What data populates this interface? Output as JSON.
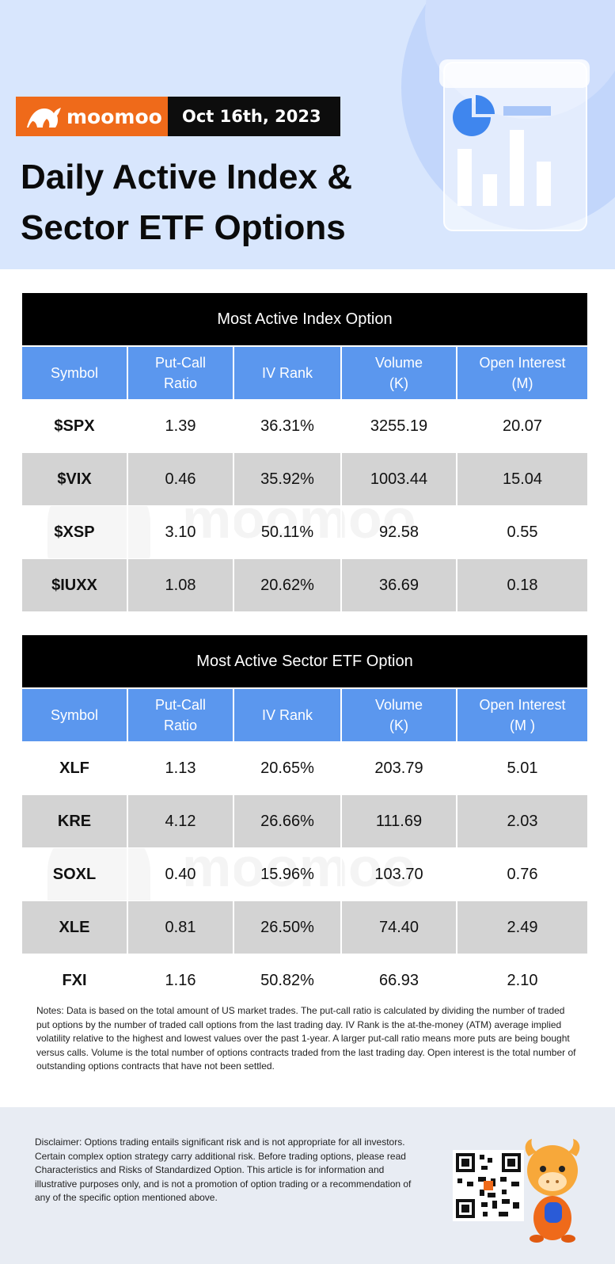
{
  "brand": {
    "name": "moomoo",
    "date": "Oct 16th, 2023"
  },
  "title_line1": "Daily Active Index &",
  "title_line2": "Sector ETF Options",
  "index_table": {
    "caption": "Most Active Index Option",
    "headers": [
      {
        "l1": "Symbol",
        "l2": ""
      },
      {
        "l1": "Put-Call",
        "l2": "Ratio"
      },
      {
        "l1": "IV Rank",
        "l2": ""
      },
      {
        "l1": "Volume",
        "l2": "(K)"
      },
      {
        "l1": "Open Interest",
        "l2": "(M)"
      }
    ],
    "rows": [
      {
        "symbol": "$SPX",
        "ratio": "1.39",
        "iv": "36.31%",
        "volume": "3255.19",
        "oi": "20.07"
      },
      {
        "symbol": "$VIX",
        "ratio": "0.46",
        "iv": "35.92%",
        "volume": "1003.44",
        "oi": "15.04"
      },
      {
        "symbol": "$XSP",
        "ratio": "3.10",
        "iv": "50.11%",
        "volume": "92.58",
        "oi": "0.55"
      },
      {
        "symbol": "$IUXX",
        "ratio": "1.08",
        "iv": "20.62%",
        "volume": "36.69",
        "oi": "0.18"
      }
    ]
  },
  "sector_table": {
    "caption": "Most Active Sector ETF Option",
    "headers": [
      {
        "l1": "Symbol",
        "l2": ""
      },
      {
        "l1": "Put-Call",
        "l2": "Ratio"
      },
      {
        "l1": "IV Rank",
        "l2": ""
      },
      {
        "l1": "Volume",
        "l2": "(K)"
      },
      {
        "l1": "Open Interest",
        "l2": "(M )"
      }
    ],
    "rows": [
      {
        "symbol": "XLF",
        "ratio": "1.13",
        "iv": "20.65%",
        "volume": "203.79",
        "oi": "5.01"
      },
      {
        "symbol": "KRE",
        "ratio": "4.12",
        "iv": "26.66%",
        "volume": "111.69",
        "oi": "2.03"
      },
      {
        "symbol": "SOXL",
        "ratio": "0.40",
        "iv": "15.96%",
        "volume": "103.70",
        "oi": "0.76"
      },
      {
        "symbol": "XLE",
        "ratio": "0.81",
        "iv": "26.50%",
        "volume": "74.40",
        "oi": "2.49"
      },
      {
        "symbol": "FXI",
        "ratio": "1.16",
        "iv": "50.82%",
        "volume": "66.93",
        "oi": "2.10"
      }
    ]
  },
  "notes": "Notes: Data is based on the total amount of US market trades. The put-call ratio is calculated by dividing the number of traded put options by the number of traded call options from the last trading day. IV Rank is the at-the-money (ATM) average implied volatility relative to the highest and lowest values over the past 1-year. A larger put-call ratio means more puts are being bought versus calls. Volume is the total number of options contracts traded from the last trading day. Open interest is the total number of outstanding options contracts that have not been settled.",
  "disclaimer": "Disclaimer: Options trading entails significant risk and is not appropriate for all investors. Certain complex option strategy carry additional risk. Before trading options, please read Characteristics and Risks of Standardized Option. This article is for information and illustrative purposes only, and is not a promotion of option trading or a recommendation of any of the specific option mentioned above.",
  "colors": {
    "brand_orange": "#ef6a1a",
    "header_blue": "#5b97ee",
    "hero_bg": "#d8e6fd",
    "alt_row": "#d3d3d3"
  },
  "icons": [
    "moomoo-bull-logo",
    "report-chart-illustration",
    "qr-code",
    "mascot-bull"
  ]
}
